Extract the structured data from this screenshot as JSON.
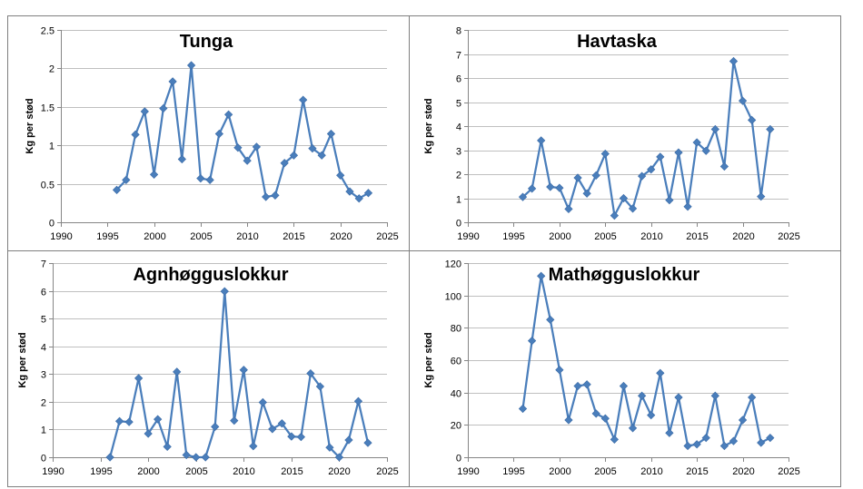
{
  "chart_data": [
    {
      "type": "line",
      "title": "Tunga",
      "ylabel": "Kg per stød",
      "xlim": [
        1990,
        2025
      ],
      "ylim": [
        0,
        2.5
      ],
      "xticks": [
        "1990",
        "1995",
        "2000",
        "2005",
        "2010",
        "2015",
        "2020",
        "2025"
      ],
      "yticks": [
        "0",
        "0.5",
        "1",
        "1.5",
        "2",
        "2.5"
      ],
      "grid": "horizontal",
      "series_color": "#4a7ebb",
      "x": [
        1996,
        1997,
        1998,
        1999,
        2000,
        2001,
        2002,
        2003,
        2004,
        2005,
        2006,
        2007,
        2008,
        2009,
        2010,
        2011,
        2012,
        2013,
        2014,
        2015,
        2016,
        2017,
        2018,
        2019,
        2020,
        2021,
        2022,
        2023
      ],
      "values": [
        0.42,
        0.55,
        1.14,
        1.44,
        0.62,
        1.48,
        1.83,
        0.82,
        2.04,
        0.57,
        0.55,
        1.15,
        1.4,
        0.97,
        0.8,
        0.98,
        0.33,
        0.35,
        0.77,
        0.87,
        1.59,
        0.96,
        0.87,
        1.15,
        0.61,
        0.4,
        0.31,
        0.38
      ]
    },
    {
      "type": "line",
      "title": "Havtaska",
      "ylabel": "Kg per stød",
      "xlim": [
        1990,
        2025
      ],
      "ylim": [
        0,
        8
      ],
      "xticks": [
        "1990",
        "1995",
        "2000",
        "2005",
        "2010",
        "2015",
        "2020",
        "2025"
      ],
      "yticks": [
        "0",
        "1",
        "2",
        "3",
        "4",
        "5",
        "6",
        "7",
        "8"
      ],
      "grid": "horizontal",
      "series_color": "#4a7ebb",
      "x": [
        1996,
        1997,
        1998,
        1999,
        2000,
        2001,
        2002,
        2003,
        2004,
        2005,
        2006,
        2007,
        2008,
        2009,
        2010,
        2011,
        2012,
        2013,
        2014,
        2015,
        2016,
        2017,
        2018,
        2019,
        2020,
        2021,
        2022,
        2023
      ],
      "values": [
        1.05,
        1.4,
        3.4,
        1.47,
        1.43,
        0.55,
        1.85,
        1.2,
        1.95,
        2.85,
        0.28,
        1.0,
        0.57,
        1.92,
        2.2,
        2.72,
        0.92,
        2.9,
        0.65,
        3.32,
        2.97,
        3.87,
        2.32,
        6.7,
        5.05,
        4.25,
        1.07,
        3.87
      ]
    },
    {
      "type": "line",
      "title": "Agnhøgguslokkur",
      "ylabel": "Kg per stød",
      "xlim": [
        1990,
        2025
      ],
      "ylim": [
        0,
        7
      ],
      "xticks": [
        "1990",
        "1995",
        "2000",
        "2005",
        "2010",
        "2015",
        "2020",
        "2025"
      ],
      "yticks": [
        "0",
        "1",
        "2",
        "3",
        "4",
        "5",
        "6",
        "7"
      ],
      "grid": "horizontal",
      "series_color": "#4a7ebb",
      "x": [
        1996,
        1997,
        1998,
        1999,
        2000,
        2001,
        2002,
        2003,
        2004,
        2005,
        2006,
        2007,
        2008,
        2009,
        2010,
        2011,
        2012,
        2013,
        2014,
        2015,
        2016,
        2017,
        2018,
        2019,
        2020,
        2021,
        2022,
        2023
      ],
      "values": [
        0.0,
        1.3,
        1.27,
        2.85,
        0.85,
        1.37,
        0.38,
        3.08,
        0.08,
        0.0,
        0.0,
        1.1,
        5.98,
        1.32,
        3.15,
        0.4,
        1.98,
        1.02,
        1.22,
        0.75,
        0.73,
        3.02,
        2.55,
        0.35,
        0.0,
        0.62,
        2.02,
        0.52
      ]
    },
    {
      "type": "line",
      "title": "Mathøgguslokkur",
      "ylabel": "Kg per stød",
      "xlim": [
        1990,
        2025
      ],
      "ylim": [
        0,
        120
      ],
      "xticks": [
        "1990",
        "1995",
        "2000",
        "2005",
        "2010",
        "2015",
        "2020",
        "2025"
      ],
      "yticks": [
        "0",
        "20",
        "40",
        "60",
        "80",
        "100",
        "120"
      ],
      "grid": "horizontal",
      "series_color": "#4a7ebb",
      "x": [
        1996,
        1997,
        1998,
        1999,
        2000,
        2001,
        2002,
        2003,
        2004,
        2005,
        2006,
        2007,
        2008,
        2009,
        2010,
        2011,
        2012,
        2013,
        2014,
        2015,
        2016,
        2017,
        2018,
        2019,
        2020,
        2021,
        2022,
        2023
      ],
      "values": [
        30,
        72,
        112,
        85,
        54,
        23,
        44,
        45,
        27,
        24,
        11,
        44,
        18,
        38,
        26,
        52,
        15,
        37,
        7,
        8,
        12,
        38,
        7,
        10,
        23,
        37,
        9,
        12
      ]
    }
  ]
}
